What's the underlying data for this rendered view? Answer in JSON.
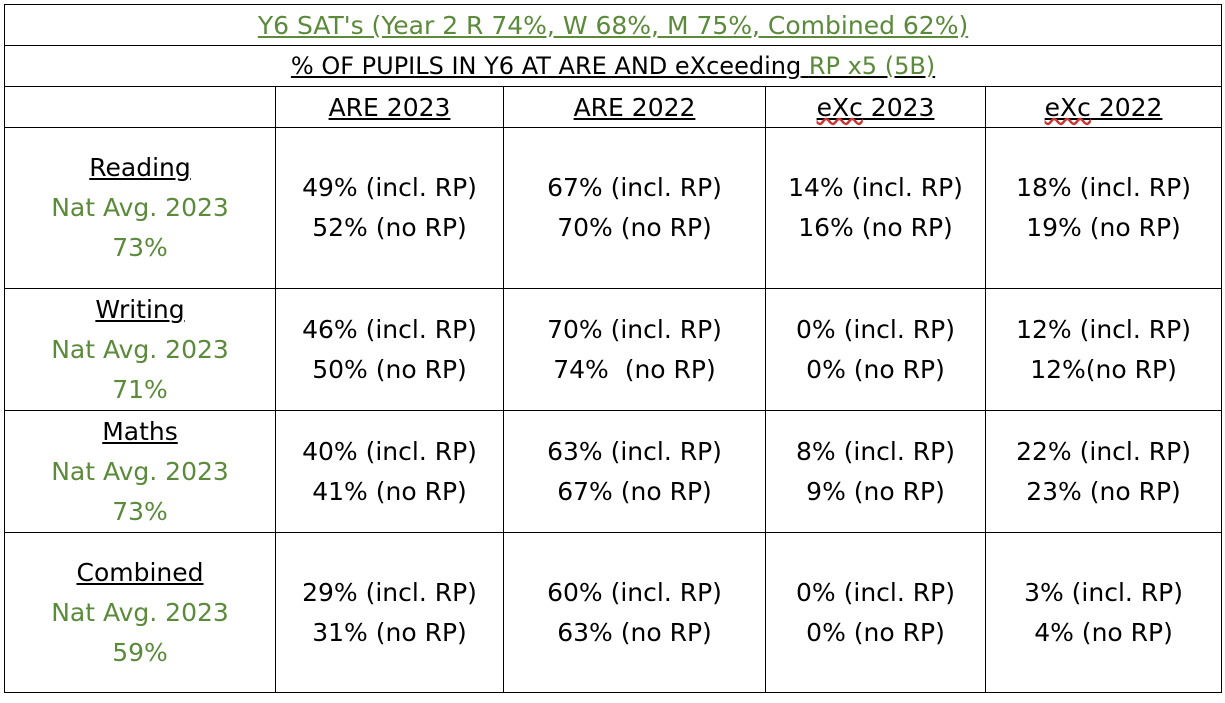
{
  "title": "Y6 SAT's (Year 2 R 74%, W 68%, M 75%, Combined 62%)",
  "subtitle": {
    "main": "% OF PUPILS IN Y6 AT ARE AND eXceeding",
    "suffix": "RP x5 (5B)"
  },
  "headers": {
    "blank": "",
    "are2023": "ARE 2023",
    "are2022": "ARE 2022",
    "exc2023_prefix": "eXc",
    "exc2023_year": " 2023",
    "exc2022_prefix": "eXc",
    "exc2022_year": " 2022"
  },
  "rows": [
    {
      "subject": "Reading",
      "nat_label": "Nat Avg. 2023",
      "nat_value": "73%",
      "are2023": [
        "49% (incl. RP)",
        "52% (no RP)"
      ],
      "are2022": [
        "67% (incl. RP)",
        "70% (no RP)"
      ],
      "exc2023": [
        "14% (incl. RP)",
        "16% (no RP)"
      ],
      "exc2022": [
        "18% (incl. RP)",
        "19% (no RP)"
      ]
    },
    {
      "subject": "Writing",
      "nat_label": "Nat Avg. 2023",
      "nat_value": "71%",
      "are2023": [
        "46% (incl. RP)",
        "50% (no RP)"
      ],
      "are2022": [
        "70% (incl. RP)",
        "74%  (no RP)"
      ],
      "exc2023": [
        "0% (incl. RP)",
        "0% (no RP)"
      ],
      "exc2022": [
        "12% (incl. RP)",
        "12%(no RP)"
      ]
    },
    {
      "subject": "Maths",
      "nat_label": "Nat Avg. 2023",
      "nat_value": "73%",
      "are2023": [
        "40% (incl. RP)",
        "41% (no RP)"
      ],
      "are2022": [
        "63% (incl. RP)",
        "67% (no RP)"
      ],
      "exc2023": [
        "8% (incl. RP)",
        "9% (no RP)"
      ],
      "exc2022": [
        "22% (incl. RP)",
        "23% (no RP)"
      ]
    },
    {
      "subject": "Combined",
      "nat_label": "Nat Avg. 2023",
      "nat_value": "59%",
      "are2023": [
        "29% (incl. RP)",
        "31% (no RP)"
      ],
      "are2022": [
        "60% (incl. RP)",
        "63% (no RP)"
      ],
      "exc2023": [
        "0% (incl. RP)",
        "0% (no RP)"
      ],
      "exc2022": [
        "3% (incl. RP)",
        "4% (no RP)"
      ]
    }
  ],
  "colors": {
    "accent_green": "#5a8a3a",
    "text": "#000000",
    "border": "#000000"
  }
}
